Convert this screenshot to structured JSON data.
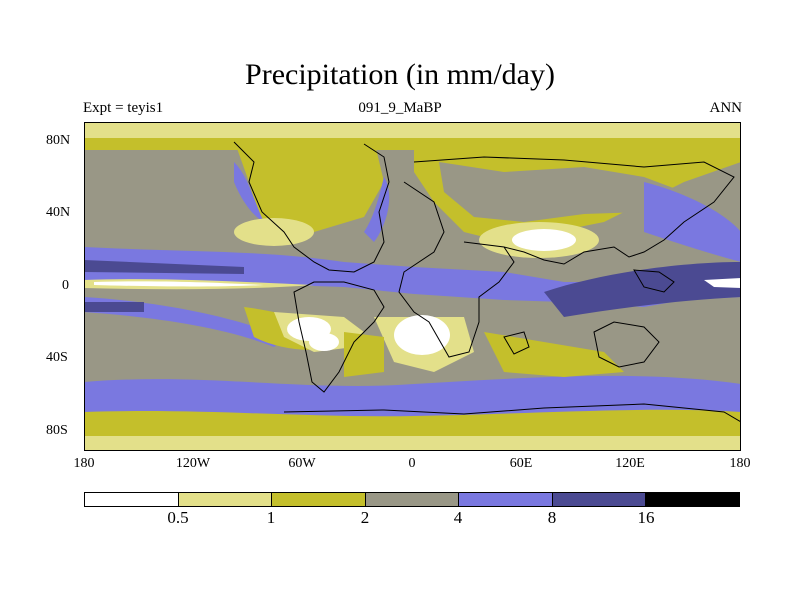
{
  "title": "Precipitation (in mm/day)",
  "subtitle_left": "Expt = teyis1",
  "subtitle_center": "091_9_MaBP",
  "subtitle_right": "ANN",
  "lat_labels": [
    "80N",
    "40N",
    "0",
    "40S",
    "80S"
  ],
  "lon_labels": [
    "180",
    "120W",
    "60W",
    "0",
    "60E",
    "120E",
    "180"
  ],
  "colorbar": {
    "levels": [
      "0.5",
      "1",
      "2",
      "4",
      "8",
      "16"
    ],
    "colors": [
      "#ffffff",
      "#e3e08a",
      "#c4bf2b",
      "#999786",
      "#7a78e0",
      "#4b4a92",
      "#000000"
    ]
  },
  "colors": {
    "light": "#e3e08a",
    "olive": "#c4bf2b",
    "gray": "#999786",
    "blue": "#7a78e0",
    "navy": "#4b4a92",
    "white": "#ffffff"
  }
}
